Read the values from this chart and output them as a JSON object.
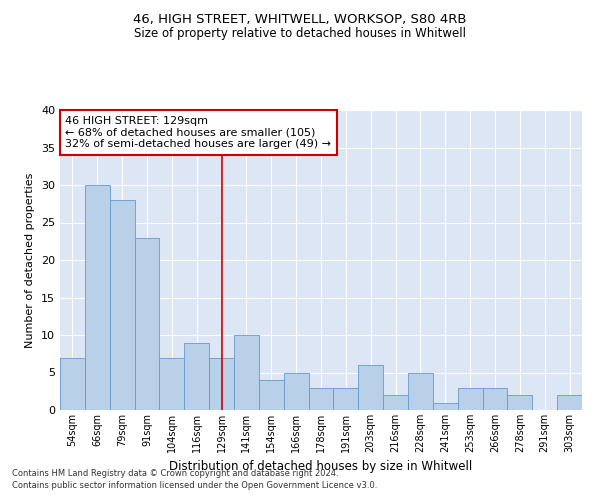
{
  "title1": "46, HIGH STREET, WHITWELL, WORKSOP, S80 4RB",
  "title2": "Size of property relative to detached houses in Whitwell",
  "xlabel": "Distribution of detached houses by size in Whitwell",
  "ylabel": "Number of detached properties",
  "categories": [
    "54sqm",
    "66sqm",
    "79sqm",
    "91sqm",
    "104sqm",
    "116sqm",
    "129sqm",
    "141sqm",
    "154sqm",
    "166sqm",
    "178sqm",
    "191sqm",
    "203sqm",
    "216sqm",
    "228sqm",
    "241sqm",
    "253sqm",
    "266sqm",
    "278sqm",
    "291sqm",
    "303sqm"
  ],
  "values": [
    7,
    30,
    28,
    23,
    7,
    9,
    7,
    10,
    4,
    5,
    3,
    3,
    6,
    2,
    5,
    1,
    3,
    3,
    2,
    0,
    2
  ],
  "bar_color": "#b8d0e8",
  "bar_edgecolor": "#6699cc",
  "highlight_index": 6,
  "vline_x": 6,
  "vline_color": "#cc0000",
  "annotation_text": "46 HIGH STREET: 129sqm\n← 68% of detached houses are smaller (105)\n32% of semi-detached houses are larger (49) →",
  "annotation_box_color": "white",
  "annotation_box_edgecolor": "#cc0000",
  "ylim": [
    0,
    40
  ],
  "yticks": [
    0,
    5,
    10,
    15,
    20,
    25,
    30,
    35,
    40
  ],
  "bg_color": "#dce6f5",
  "footer1": "Contains HM Land Registry data © Crown copyright and database right 2024.",
  "footer2": "Contains public sector information licensed under the Open Government Licence v3.0."
}
